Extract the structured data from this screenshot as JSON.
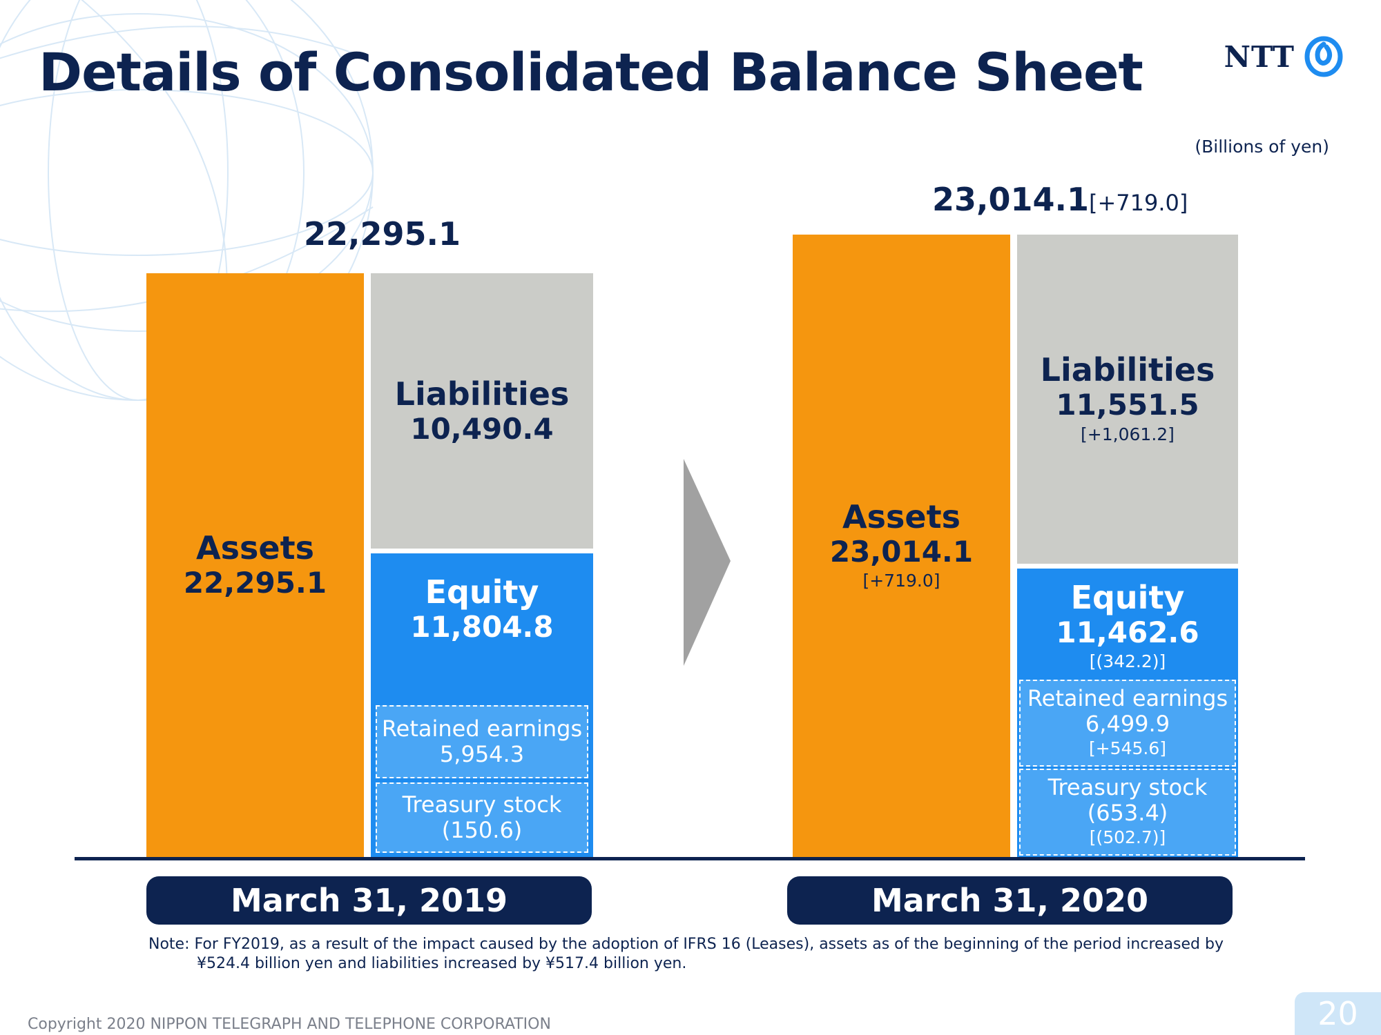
{
  "title": "Details of Consolidated Balance Sheet",
  "logo": {
    "text": "NTT",
    "icon": "ntt-swirl-icon"
  },
  "unit_note": "(Billions of yen)",
  "colors": {
    "navy": "#0d2350",
    "assets": "#f5960f",
    "liabilities": "#cbccc8",
    "equity": "#1e8cf0",
    "equity_sub": "#4aa6f5"
  },
  "chart_data": [
    {
      "type": "bar",
      "date": "March 31, 2019",
      "total": "22,295.1",
      "total_value": 22295.1,
      "assets": {
        "label": "Assets",
        "value": 22295.1,
        "value_text": "22,295.1"
      },
      "liabilities": {
        "label": "Liabilities",
        "value": 10490.4,
        "value_text": "10,490.4"
      },
      "equity": {
        "label": "Equity",
        "value": 11804.8,
        "value_text": "11,804.8"
      },
      "retained_earnings": {
        "label": "Retained earnings",
        "value_text": "5,954.3"
      },
      "treasury_stock": {
        "label": "Treasury stock",
        "value_text": "(150.6)"
      }
    },
    {
      "type": "bar",
      "date": "March 31, 2020",
      "total": "23,014.1",
      "total_delta": "[+719.0]",
      "total_value": 23014.1,
      "assets": {
        "label": "Assets",
        "value": 23014.1,
        "value_text": "23,014.1",
        "delta": "[+719.0]"
      },
      "liabilities": {
        "label": "Liabilities",
        "value": 11551.5,
        "value_text": "11,551.5",
        "delta": "[+1,061.2]"
      },
      "equity": {
        "label": "Equity",
        "value": 11462.6,
        "value_text": "11,462.6",
        "delta": "[(342.2)]"
      },
      "retained_earnings": {
        "label": "Retained earnings",
        "value_text": "6,499.9",
        "delta": "[+545.6]"
      },
      "treasury_stock": {
        "label": "Treasury stock",
        "value_text": "(653.4)",
        "delta": "[(502.7)]"
      }
    }
  ],
  "note": {
    "line1": "Note: For FY2019, as a result of the impact caused by the adoption of IFRS 16 (Leases), assets as of the beginning of the period increased by",
    "line2": "¥524.4 billion yen and liabilities increased by ¥517.4 billion yen."
  },
  "copyright": "Copyright 2020 NIPPON TELEGRAPH AND TELEPHONE CORPORATION",
  "page_number": "20"
}
